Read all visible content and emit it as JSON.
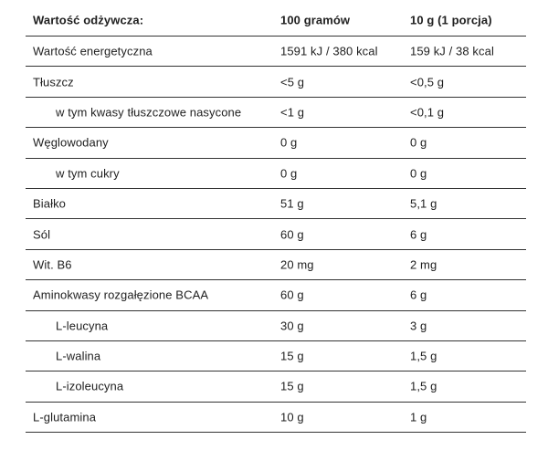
{
  "header": {
    "nutrient": "Wartość odżywcza:",
    "per_100g": "100 gramów",
    "per_10g": "10 g (1 porcja)"
  },
  "rows": [
    {
      "name": "Wartość energetyczna",
      "per_100g": "1591 kJ / 380 kcal",
      "per_10g": "159 kJ / 38 kcal"
    },
    {
      "name": "Tłuszcz",
      "per_100g": "<5 g",
      "per_10g": "<0,5 g"
    },
    {
      "name": "w tym kwasy tłuszczowe nasycone",
      "per_100g": "<1 g",
      "per_10g": "<0,1 g"
    },
    {
      "name": "Węglowodany",
      "per_100g": "0 g",
      "per_10g": "0 g"
    },
    {
      "name": "w tym cukry",
      "per_100g": "0 g",
      "per_10g": "0 g"
    },
    {
      "name": "Białko",
      "per_100g": "51 g",
      "per_10g": "5,1 g"
    },
    {
      "name": "Sól",
      "per_100g": "60 g",
      "per_10g": "6 g"
    },
    {
      "name": "Wit. B6",
      "per_100g": "20 mg",
      "per_10g": "2 mg"
    },
    {
      "name": "Aminokwasy rozgałęzione BCAA",
      "per_100g": "60 g",
      "per_10g": "6 g"
    },
    {
      "name": "L-leucyna",
      "per_100g": "30 g",
      "per_10g": "3 g"
    },
    {
      "name": "L-walina",
      "per_100g": "15 g",
      "per_10g": "1,5 g"
    },
    {
      "name": "L-izoleucyna",
      "per_100g": "15 g",
      "per_10g": "1,5 g"
    },
    {
      "name": "L-glutamina",
      "per_100g": "10 g",
      "per_10g": "1 g"
    }
  ]
}
